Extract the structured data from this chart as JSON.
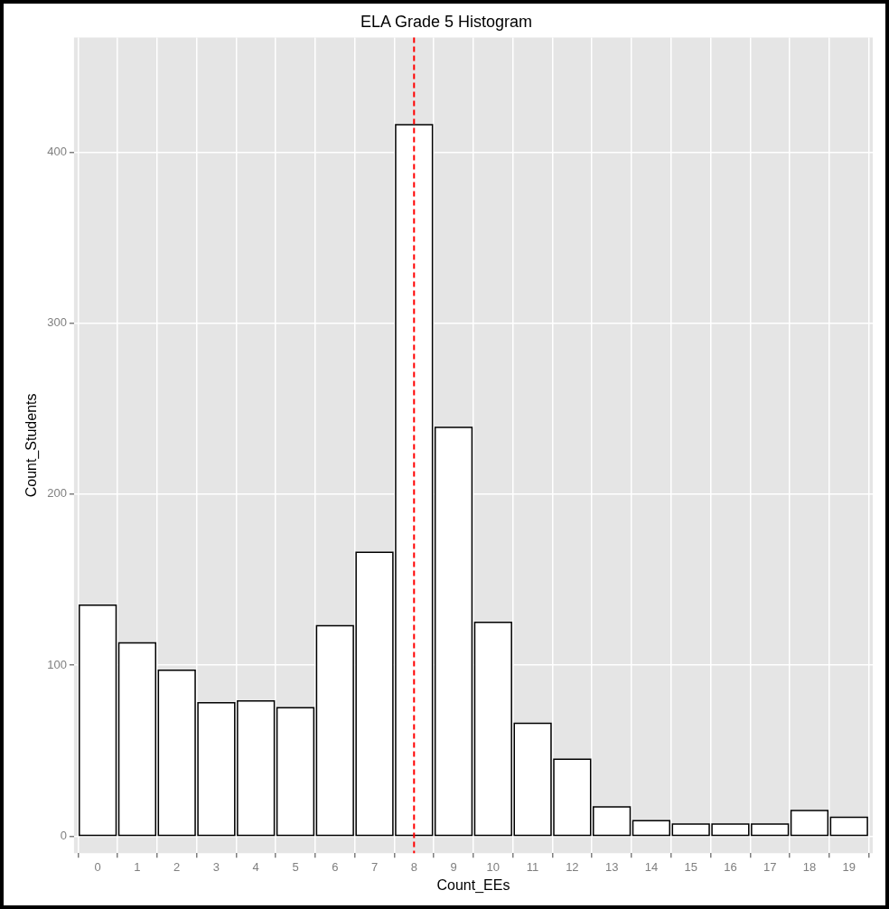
{
  "chart_data": {
    "type": "histogram",
    "title": "ELA Grade 5 Histogram",
    "xlabel": "Count_EEs",
    "ylabel": "Count_Students",
    "bins": [
      -0.5,
      0.5,
      1.5,
      2.5,
      3.5,
      4.5,
      5.5,
      6.5,
      7.5,
      8.5,
      9.5,
      10.5,
      11.5,
      12.5,
      13.5,
      14.5,
      15.5,
      16.5,
      17.5,
      18.5,
      19.5
    ],
    "values": [
      135,
      113,
      97,
      78,
      79,
      75,
      123,
      166,
      416,
      239,
      125,
      66,
      45,
      17,
      9,
      7,
      7,
      7,
      15,
      11
    ],
    "color": "#ffffff",
    "xlim": [
      -0.6,
      19.6
    ],
    "xticks": [
      0,
      1,
      2,
      3,
      4,
      5,
      6,
      7,
      8,
      9,
      10,
      11,
      12,
      13,
      14,
      15,
      16,
      17,
      18,
      19
    ],
    "ylim": [
      -10,
      467
    ],
    "yticks": [
      0,
      100,
      200,
      300,
      400
    ],
    "ref_lines": [
      {
        "axis": "x",
        "value": 8,
        "color": "#ff0000",
        "line_style": "dashed"
      }
    ],
    "grid": true,
    "legend": false
  }
}
